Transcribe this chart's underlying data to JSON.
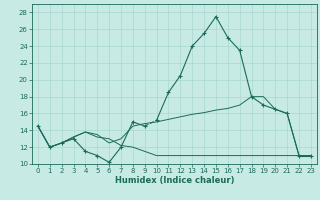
{
  "xlabel": "Humidex (Indice chaleur)",
  "xlim": [
    -0.5,
    23.5
  ],
  "ylim": [
    10,
    29
  ],
  "yticks": [
    10,
    12,
    14,
    16,
    18,
    20,
    22,
    24,
    26,
    28
  ],
  "xticks": [
    0,
    1,
    2,
    3,
    4,
    5,
    6,
    7,
    8,
    9,
    10,
    11,
    12,
    13,
    14,
    15,
    16,
    17,
    18,
    19,
    20,
    21,
    22,
    23
  ],
  "bg_color": "#c8eae4",
  "line_color": "#1a6b5a",
  "grid_color": "#a8d8d0",
  "series_main": {
    "x": [
      0,
      1,
      2,
      3,
      4,
      5,
      6,
      7,
      8,
      9,
      10,
      11,
      12,
      13,
      14,
      15,
      16,
      17,
      18,
      19,
      20,
      21,
      22,
      23
    ],
    "y": [
      14.5,
      12,
      12.5,
      13,
      11.5,
      11,
      10.2,
      12,
      15,
      14.5,
      15.2,
      18.5,
      20.5,
      24,
      25.5,
      27.5,
      25,
      23.5,
      18,
      17,
      16.5,
      16,
      11,
      11
    ],
    "dashed_between": [
      9,
      10
    ]
  },
  "series_low": {
    "x": [
      0,
      1,
      2,
      3,
      4,
      5,
      6,
      7,
      8,
      9,
      10,
      11,
      12,
      13,
      14,
      15,
      16,
      17,
      18,
      19,
      20,
      21,
      22,
      23
    ],
    "y": [
      14.5,
      12,
      12.5,
      13.2,
      13.8,
      13.2,
      13.0,
      12.2,
      12.0,
      11.5,
      11.0,
      11.0,
      11.0,
      11.0,
      11.0,
      11.0,
      11.0,
      11.0,
      11.0,
      11.0,
      11.0,
      11.0,
      11.0,
      11.0
    ]
  },
  "series_mid": {
    "x": [
      0,
      1,
      2,
      3,
      4,
      5,
      6,
      7,
      8,
      9,
      10,
      11,
      12,
      13,
      14,
      15,
      16,
      17,
      18,
      19,
      20,
      21,
      22,
      23
    ],
    "y": [
      14.5,
      12,
      12.5,
      13.2,
      13.8,
      13.5,
      12.5,
      13.0,
      14.5,
      14.8,
      15.0,
      15.3,
      15.6,
      15.9,
      16.1,
      16.4,
      16.6,
      17.0,
      18.0,
      18.0,
      16.5,
      16.0,
      11.0,
      11.0
    ]
  }
}
